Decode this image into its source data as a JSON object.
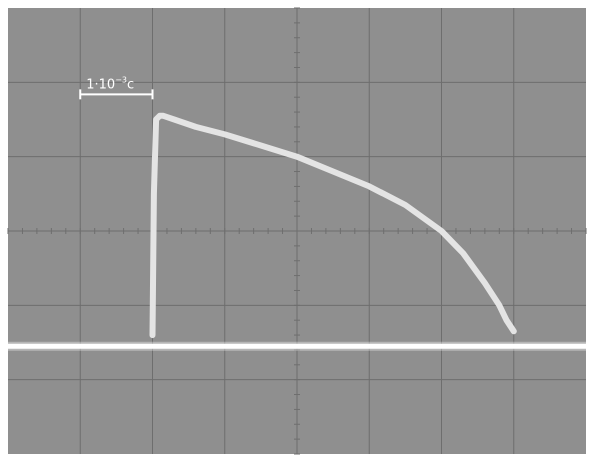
{
  "chart_data": {
    "type": "line",
    "title": "",
    "xlabel": "",
    "ylabel": "",
    "grid": true,
    "grid_divisions": {
      "x": 8,
      "y": 6
    },
    "x_range_div": [
      0,
      8
    ],
    "y_range_div": [
      -3,
      3
    ],
    "scale_bar": {
      "base": "1·10",
      "exponent": "−3",
      "unit": "c",
      "length_div": 1
    },
    "colors": {
      "screen": "#8f8f8f",
      "grid": "#6e6e6e",
      "trace": "#e4e4e4",
      "baseline": "#ffffff"
    },
    "series": [
      {
        "role": "baseline",
        "x": [
          0,
          8
        ],
        "y": [
          -1.55,
          -1.55
        ]
      },
      {
        "role": "pulse",
        "x": [
          2.0,
          2.02,
          2.05,
          2.1,
          2.15,
          2.3,
          2.6,
          3.0,
          3.5,
          4.0,
          4.5,
          5.0,
          5.5,
          6.0,
          6.3,
          6.6,
          6.8,
          6.9,
          7.0
        ],
        "y": [
          -1.4,
          0.5,
          1.5,
          1.55,
          1.55,
          1.5,
          1.4,
          1.3,
          1.15,
          1.0,
          0.8,
          0.6,
          0.35,
          0.0,
          -0.3,
          -0.7,
          -1.0,
          -1.2,
          -1.35
        ]
      }
    ]
  }
}
